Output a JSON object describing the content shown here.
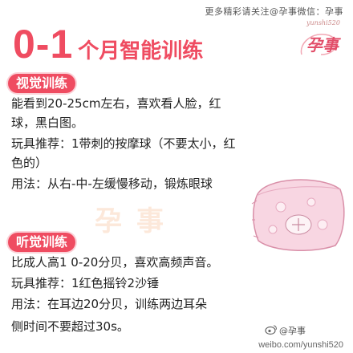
{
  "header": {
    "note": "更多精彩请关注@孕事微信：孕事",
    "logo_small": "yunshi520",
    "logo_big": "孕事"
  },
  "title": {
    "big": "0-1",
    "rest": "个月智能训练"
  },
  "sections": [
    {
      "label": "视觉训练",
      "lines": [
        "能看到20-25cm左右，喜欢看人脸，红",
        "球，黑白图。",
        "玩具推荐：1带刺的按摩球（不要太小，红",
        "色的）",
        "用法：从右-中-左缓慢移动，锻炼眼球"
      ]
    },
    {
      "label": "听觉训练",
      "lines": [
        "比成人高1 0-20分贝，喜欢高频声音。",
        "玩具推荐：1红色摇铃2沙锤",
        "用法：在耳边20分贝，训练两边耳朵",
        "侧时间不要超过30s。"
      ]
    }
  ],
  "watermark": "孕事",
  "footer": {
    "handle": "@孕事",
    "url": "weibo.com/yunshi520"
  },
  "colors": {
    "accent": "#ef4c61",
    "pill_glow": "#fbd3d9"
  }
}
